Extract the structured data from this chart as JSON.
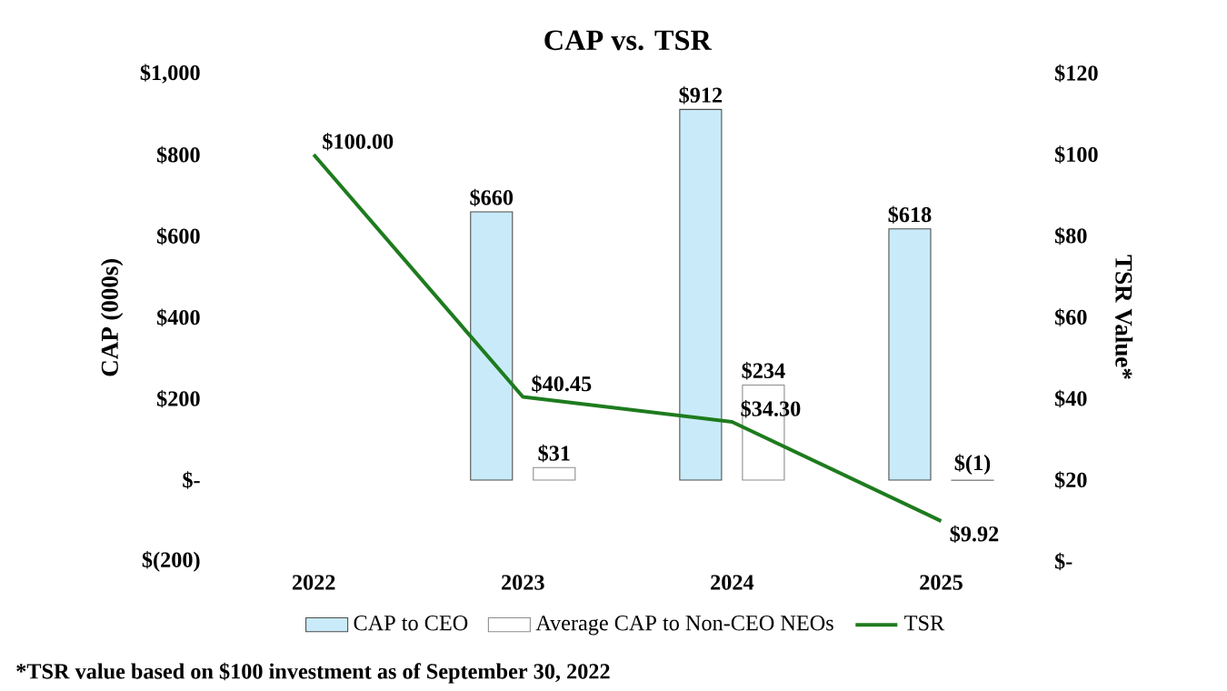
{
  "chart_data": {
    "type": "bar",
    "title": "CAP vs. TSR",
    "ylabel": "CAP (000s)",
    "y2label": "TSR Value*",
    "categories": [
      "2022",
      "2023",
      "2024",
      "2025"
    ],
    "series": [
      {
        "name": "CAP to CEO",
        "color": "#c9ebf9",
        "values": [
          null,
          660,
          912,
          618
        ],
        "value_labels": [
          null,
          "$660",
          "$912",
          "$618"
        ]
      },
      {
        "name": "Average CAP to Non-CEO NEOs",
        "color": "#ffffff",
        "values": [
          null,
          31,
          234,
          -1
        ],
        "value_labels": [
          null,
          "$31",
          "$234",
          "$(1)"
        ]
      },
      {
        "name": "TSR",
        "type": "line",
        "axis": "y2",
        "color": "#1e7b1e",
        "values": [
          100,
          40.45,
          34.3,
          9.92
        ],
        "value_labels": [
          "$100.00",
          "$40.45",
          "$34.30",
          "$9.92"
        ]
      }
    ],
    "ylim": [
      -200,
      1000
    ],
    "yticks": [
      {
        "value": -200,
        "label": "$(200)"
      },
      {
        "value": 0,
        "label": "$-"
      },
      {
        "value": 200,
        "label": "$200"
      },
      {
        "value": 400,
        "label": "$400"
      },
      {
        "value": 600,
        "label": "$600"
      },
      {
        "value": 800,
        "label": "$800"
      },
      {
        "value": 1000,
        "label": "$1,000"
      }
    ],
    "y2lim": [
      0,
      120
    ],
    "y2ticks": [
      {
        "value": 0,
        "label": "$-"
      },
      {
        "value": 20,
        "label": "$20"
      },
      {
        "value": 40,
        "label": "$40"
      },
      {
        "value": 60,
        "label": "$60"
      },
      {
        "value": 80,
        "label": "$80"
      },
      {
        "value": 100,
        "label": "$100"
      },
      {
        "value": 120,
        "label": "$120"
      }
    ],
    "legend": "bottom",
    "grid": false,
    "annotations": [
      "*TSR value based on $100 investment as of September 30, 2022"
    ]
  }
}
